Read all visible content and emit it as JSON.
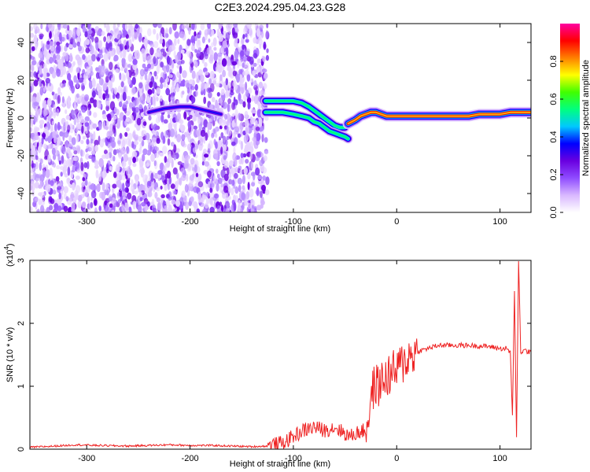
{
  "figure": {
    "title": "C2E3.2024.295.04.23.G28"
  },
  "chart_data": [
    {
      "type": "heatmap",
      "name": "spectrogram",
      "xlabel": "Height of straight line (km)",
      "ylabel": "Frequency (Hz)",
      "xlim": [
        -355,
        130
      ],
      "ylim": [
        -50,
        50
      ],
      "x_ticks": [
        -300,
        -200,
        -100,
        0,
        100
      ],
      "y_ticks": [
        -40,
        -20,
        0,
        20,
        40
      ],
      "colorbar": {
        "label": "Normalized spectral amplitude",
        "range": [
          0,
          1
        ],
        "ticks": [
          0.0,
          0.2,
          0.4,
          0.6,
          0.8
        ],
        "tick_labels": [
          "0.0",
          "0.2",
          "0.4",
          "0.6",
          "0.8"
        ],
        "colors": [
          "#ffffff",
          "#d9b8ff",
          "#8f4cff",
          "#6a00e0",
          "#0000ff",
          "#00c8ff",
          "#00ff80",
          "#40ff00",
          "#ffff00",
          "#ff8000",
          "#ff0000",
          "#ff00a0"
        ]
      },
      "noise_region_x": [
        -355,
        -125
      ],
      "features": [
        {
          "name": "upper-trace",
          "x": [
            -127,
            -118,
            -110,
            -100,
            -92,
            -85,
            -80,
            -75,
            -70,
            -65,
            -60,
            -55,
            -50
          ],
          "y": [
            9,
            9,
            9,
            9,
            8,
            6,
            4,
            2,
            0,
            -2,
            -4,
            -5,
            -5
          ]
        },
        {
          "name": "lower-trace",
          "x": [
            -127,
            -118,
            -110,
            -100,
            -92,
            -85,
            -80,
            -75,
            -70,
            -65,
            -60,
            -55,
            -50,
            -47
          ],
          "y": [
            3,
            3,
            3,
            2,
            1,
            0,
            -2,
            -3,
            -5,
            -7,
            -8,
            -9,
            -10,
            -11
          ]
        },
        {
          "name": "converged-trace",
          "x": [
            -47,
            -40,
            -35,
            -30,
            -25,
            -20,
            -15,
            -10,
            0,
            10,
            20,
            30,
            40,
            50,
            60,
            70,
            80,
            90,
            100,
            110,
            120,
            130
          ],
          "y": [
            -3,
            -1,
            1,
            2,
            3,
            3,
            2,
            1,
            1,
            1,
            1,
            1,
            1,
            1,
            1,
            1,
            2,
            2,
            2,
            3,
            3,
            3
          ]
        },
        {
          "name": "early-feature",
          "x": [
            -240,
            -225,
            -210,
            -200,
            -185,
            -170
          ],
          "y": [
            3,
            5,
            6,
            6,
            4,
            2
          ]
        }
      ]
    },
    {
      "type": "line",
      "name": "snr",
      "xlabel": "Height of straight line (km)",
      "ylabel": "SNR (10 * v/v)",
      "multiplier_label": "(x10",
      "multiplier_exp": "4",
      "multiplier_close": ")",
      "xlim": [
        -355,
        130
      ],
      "ylim": [
        0,
        3
      ],
      "x_ticks": [
        -300,
        -200,
        -100,
        0,
        100
      ],
      "y_ticks": [
        0,
        1,
        2,
        3
      ],
      "color": "#ee2222",
      "series": [
        {
          "x": [
            -355,
            -330,
            -310,
            -290,
            -260,
            -240,
            -220,
            -200,
            -180,
            -160,
            -140,
            -125,
            -110,
            -100,
            -90,
            -80,
            -70,
            -60,
            -50,
            -45,
            -40,
            -35,
            -30,
            -27,
            -25,
            -22,
            -20,
            -15,
            -10,
            -5,
            0,
            5,
            10,
            20,
            30,
            40,
            50,
            60,
            70,
            80,
            90,
            100,
            105,
            110,
            112,
            114,
            116,
            118,
            120,
            125,
            130
          ],
          "y": [
            0.03,
            0.05,
            0.07,
            0.06,
            0.05,
            0.06,
            0.07,
            0.06,
            0.06,
            0.05,
            0.04,
            0.05,
            0.1,
            0.2,
            0.3,
            0.35,
            0.3,
            0.35,
            0.25,
            0.2,
            0.25,
            0.28,
            0.3,
            0.55,
            0.8,
            1.0,
            1.0,
            1.05,
            1.15,
            1.2,
            1.25,
            1.35,
            1.45,
            1.55,
            1.6,
            1.65,
            1.65,
            1.65,
            1.65,
            1.64,
            1.63,
            1.6,
            1.6,
            1.55,
            0.5,
            2.5,
            0.2,
            3.0,
            1.55,
            1.56,
            1.55
          ]
        }
      ]
    }
  ]
}
